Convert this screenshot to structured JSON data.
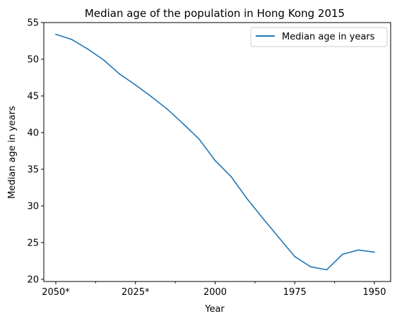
{
  "chart_data": {
    "type": "line",
    "title": "Median age of the population in Hong Kong 2015",
    "xlabel": "Year",
    "ylabel": "Median age in years",
    "x": [
      "2050*",
      "2045*",
      "2040*",
      "2035*",
      "2030*",
      "2025*",
      "2020*",
      "2015",
      "2010",
      "2005",
      "2000",
      "1995",
      "1990",
      "1985",
      "1980",
      "1975",
      "1970",
      "1965",
      "1960",
      "1955",
      "1950"
    ],
    "x_tick_labels": [
      "2050*",
      "2025*",
      "2000",
      "1975",
      "1950"
    ],
    "series": [
      {
        "name": "Median age in years",
        "color": "#1f77b4",
        "values": [
          53.4,
          52.7,
          51.4,
          49.9,
          48.0,
          46.5,
          44.9,
          43.2,
          41.2,
          39.1,
          36.2,
          34.0,
          31.0,
          28.3,
          25.7,
          23.1,
          21.7,
          21.3,
          23.4,
          24.0,
          23.7
        ]
      }
    ],
    "ylim": [
      19.7,
      55
    ],
    "yticks": [
      20,
      25,
      30,
      35,
      40,
      45,
      50,
      55
    ],
    "legend": "top-right",
    "grid": false
  }
}
